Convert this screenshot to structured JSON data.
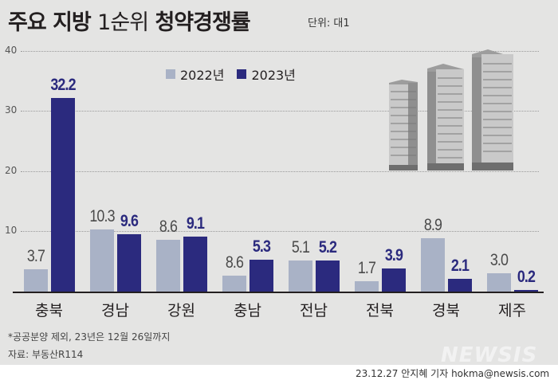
{
  "header": {
    "title_bold_1": "주요 지방",
    "title_light": "1순위",
    "title_bold_2": "청약경쟁률",
    "unit": "단위: 대1"
  },
  "legend": {
    "items": [
      {
        "label": "2022년",
        "color": "#a9b2c6"
      },
      {
        "label": "2023년",
        "color": "#2b2a7e"
      }
    ]
  },
  "axis": {
    "yticks": [
      "40",
      "30",
      "20",
      "10"
    ]
  },
  "bars": {
    "labels22": [
      "3.7",
      "10.3",
      "8.6",
      "8.6",
      "5.1",
      "1.7",
      "8.9",
      "3.0"
    ],
    "labels23": [
      "32.2",
      "9.6",
      "9.1",
      "5.3",
      "5.2",
      "3.9",
      "2.1",
      "0.2"
    ],
    "categories": [
      "충북",
      "경남",
      "강원",
      "충남",
      "전남",
      "전북",
      "경북",
      "제주"
    ]
  },
  "footer": {
    "note": "*공공분양 제외, 23년은 12월 26일까지",
    "source": "자료: 부동산R114",
    "brand": "NEWSIS",
    "credit": "23.12.27 안지혜 기자 hokma@newsis.com"
  },
  "chart_data": {
    "type": "bar",
    "title": "주요 지방 1순위 청약경쟁률",
    "subtitle": "단위: 대1",
    "categories": [
      "충북",
      "경남",
      "강원",
      "충남",
      "전남",
      "전북",
      "경북",
      "제주"
    ],
    "series": [
      {
        "name": "2022년",
        "color": "#a9b2c6",
        "values": [
          3.7,
          10.3,
          8.6,
          8.6,
          5.1,
          1.7,
          8.9,
          3.0
        ]
      },
      {
        "name": "2023년",
        "color": "#2b2a7e",
        "values": [
          32.2,
          9.6,
          9.1,
          5.3,
          5.2,
          3.9,
          2.1,
          0.2
        ]
      }
    ],
    "xlabel": "",
    "ylabel": "",
    "ylim": [
      0,
      40
    ],
    "yticks": [
      10,
      20,
      30,
      40
    ],
    "grid": true,
    "legend_position": "top",
    "annotations": [
      "*공공분양 제외, 23년은 12월 26일까지",
      "자료: 부동산R114"
    ]
  }
}
